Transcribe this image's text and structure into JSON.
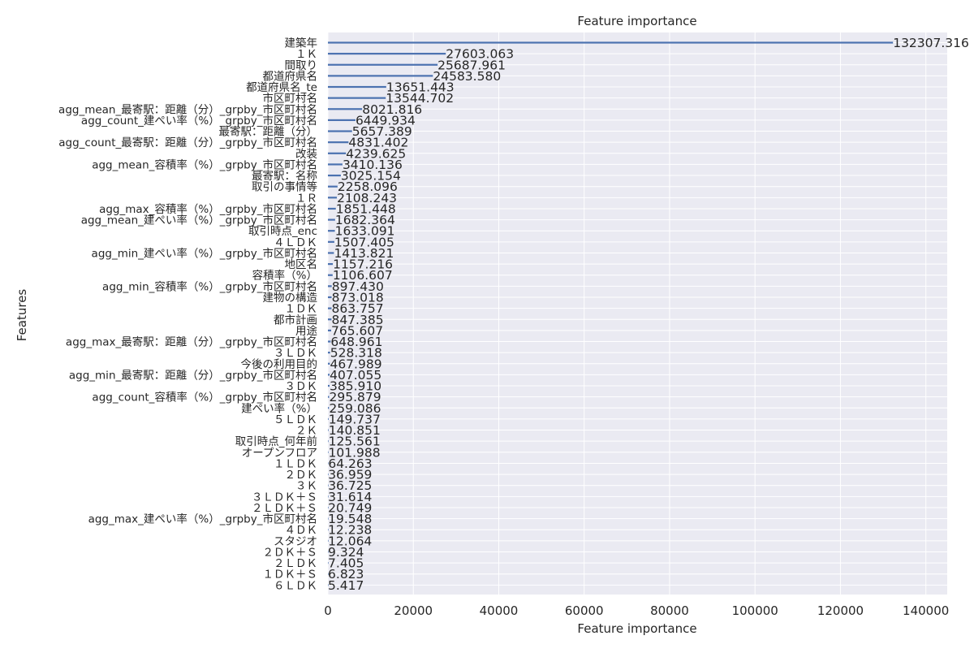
{
  "chart_data": {
    "type": "bar",
    "orientation": "horizontal",
    "title": "Feature importance",
    "xlabel": "Feature importance",
    "ylabel": "Features",
    "xlim": [
      0,
      145000
    ],
    "xticks": [
      0,
      20000,
      40000,
      60000,
      80000,
      100000,
      120000,
      140000
    ],
    "grid": true,
    "bar_color": "#4c72b0",
    "background_color": "#eaeaf2",
    "categories": [
      "建築年",
      "１Ｋ",
      "間取り",
      "都道府県名",
      "都道府県名_te",
      "市区町村名",
      "agg_mean_最寄駅：距離（分）_grpby_市区町村名",
      "agg_count_建ぺい率（%）_grpby_市区町村名",
      "最寄駅：距離（分）",
      "agg_count_最寄駅：距離（分）_grpby_市区町村名",
      "改装",
      "agg_mean_容積率（%）_grpby_市区町村名",
      "最寄駅：名称",
      "取引の事情等",
      "１Ｒ",
      "agg_max_容積率（%）_grpby_市区町村名",
      "agg_mean_建ぺい率（%）_grpby_市区町村名",
      "取引時点_enc",
      "４ＬＤＫ",
      "agg_min_建ぺい率（%）_grpby_市区町村名",
      "地区名",
      "容積率（%）",
      "agg_min_容積率（%）_grpby_市区町村名",
      "建物の構造",
      "１ＤＫ",
      "都市計画",
      "用途",
      "agg_max_最寄駅：距離（分）_grpby_市区町村名",
      "３ＬＤＫ",
      "今後の利用目的",
      "agg_min_最寄駅：距離（分）_grpby_市区町村名",
      "３ＤＫ",
      "agg_count_容積率（%）_grpby_市区町村名",
      "建ぺい率（%）",
      "５ＬＤＫ",
      "２Ｋ",
      "取引時点_何年前",
      "オープンフロア",
      "１ＬＤＫ",
      "２ＤＫ",
      "３Ｋ",
      "３ＬＤＫ＋Ｓ",
      "２ＬＤＫ＋Ｓ",
      "agg_max_建ぺい率（%）_grpby_市区町村名",
      "４ＤＫ",
      "スタジオ",
      "２ＤＫ＋Ｓ",
      "２ＬＤＫ",
      "１ＤＫ＋Ｓ",
      "６ＬＤＫ"
    ],
    "values": [
      132307.316,
      27603.063,
      25687.961,
      24583.58,
      13651.443,
      13544.702,
      8021.816,
      6449.934,
      5657.389,
      4831.402,
      4239.625,
      3410.136,
      3025.154,
      2258.096,
      2108.243,
      1851.448,
      1682.364,
      1633.091,
      1507.405,
      1413.821,
      1157.216,
      1106.607,
      897.43,
      873.018,
      863.757,
      847.385,
      765.607,
      648.961,
      528.318,
      467.989,
      407.055,
      385.91,
      295.879,
      259.086,
      149.737,
      140.851,
      125.561,
      101.988,
      64.263,
      36.959,
      36.725,
      31.614,
      20.749,
      19.548,
      12.238,
      12.064,
      9.324,
      7.405,
      6.823,
      5.417
    ],
    "value_labels": [
      "132307.316",
      "27603.063",
      "25687.961",
      "24583.580",
      "13651.443",
      "13544.702",
      "8021.816",
      "6449.934",
      "5657.389",
      "4831.402",
      "4239.625",
      "3410.136",
      "3025.154",
      "2258.096",
      "2108.243",
      "1851.448",
      "1682.364",
      "1633.091",
      "1507.405",
      "1413.821",
      "1157.216",
      "1106.607",
      "897.430",
      "873.018",
      "863.757",
      "847.385",
      "765.607",
      "648.961",
      "528.318",
      "467.989",
      "407.055",
      "385.910",
      "295.879",
      "259.086",
      "149.737",
      "140.851",
      "125.561",
      "101.988",
      "64.263",
      "36.959",
      "36.725",
      "31.614",
      "20.749",
      "19.548",
      "12.238",
      "12.064",
      "9.324",
      "7.405",
      "6.823",
      "5.417"
    ]
  }
}
